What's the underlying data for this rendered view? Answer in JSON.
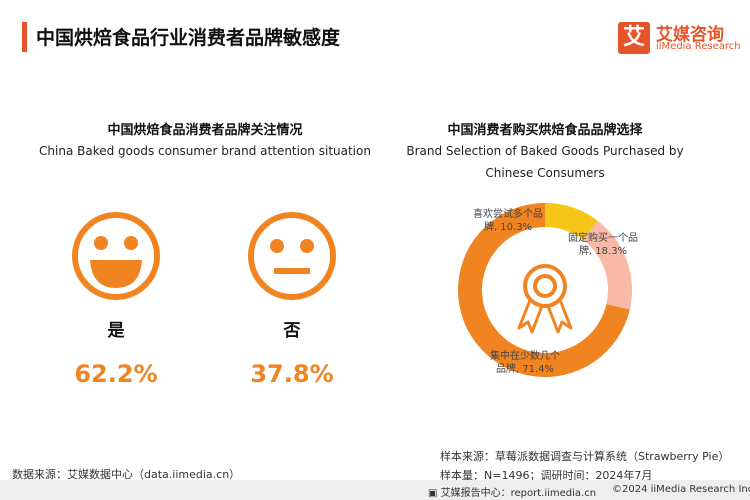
{
  "header": {
    "title": "中国烘焙食品行业消费者品牌敏感度",
    "logo_mark": "艾",
    "logo_cn": "艾媒咨询",
    "logo_en": "iiMedia Research"
  },
  "left": {
    "title_cn": "中国烘焙食品消费者品牌关注情况",
    "title_en": "China Baked goods consumer brand attention situation"
  },
  "right": {
    "title_cn": "中国消费者购买烘焙食品品牌选择",
    "title_en_line1": "Brand Selection of Baked Goods Purchased by",
    "title_en_line2": "Chinese Consumers"
  },
  "chart_data": [
    {
      "type": "bar",
      "categories": [
        "是",
        "否"
      ],
      "values": [
        62.2,
        37.8
      ],
      "value_labels": [
        "62.2%",
        "37.8%"
      ],
      "icons": [
        "smiley-face-icon",
        "neutral-face-icon"
      ]
    },
    {
      "type": "pie",
      "categories": [
        "喜欢尝试多个品牌",
        "固定购买一个品牌",
        "集中在少数几个品牌"
      ],
      "values": [
        10.3,
        18.3,
        71.4
      ],
      "labels": [
        [
          "喜欢尝试多个品",
          "牌, 10.3%"
        ],
        [
          "固定购买一个品",
          "牌, 18.3%"
        ],
        [
          "集中在少数几个",
          "品牌, 71.4%"
        ]
      ],
      "colors": [
        "#f5c518",
        "#f8b9a6",
        "#f08421"
      ],
      "center_icon": "award-ribbon-icon"
    }
  ],
  "footer": {
    "source": "数据来源：艾媒数据中心（data.iimedia.cn）",
    "sample_source": "样本来源：草莓派数据调查与计算系统（Strawberry Pie）",
    "sample_size": "样本量：N=1496；调研时间：2024年7月",
    "report_center": "艾媒报告中心：report.iimedia.cn",
    "copyright": "©2024 iiMedia Research Inc"
  },
  "colors": {
    "accent": "#e8542a",
    "orange": "#f08421",
    "yellow": "#f5c518",
    "pink": "#f8b9a6"
  }
}
